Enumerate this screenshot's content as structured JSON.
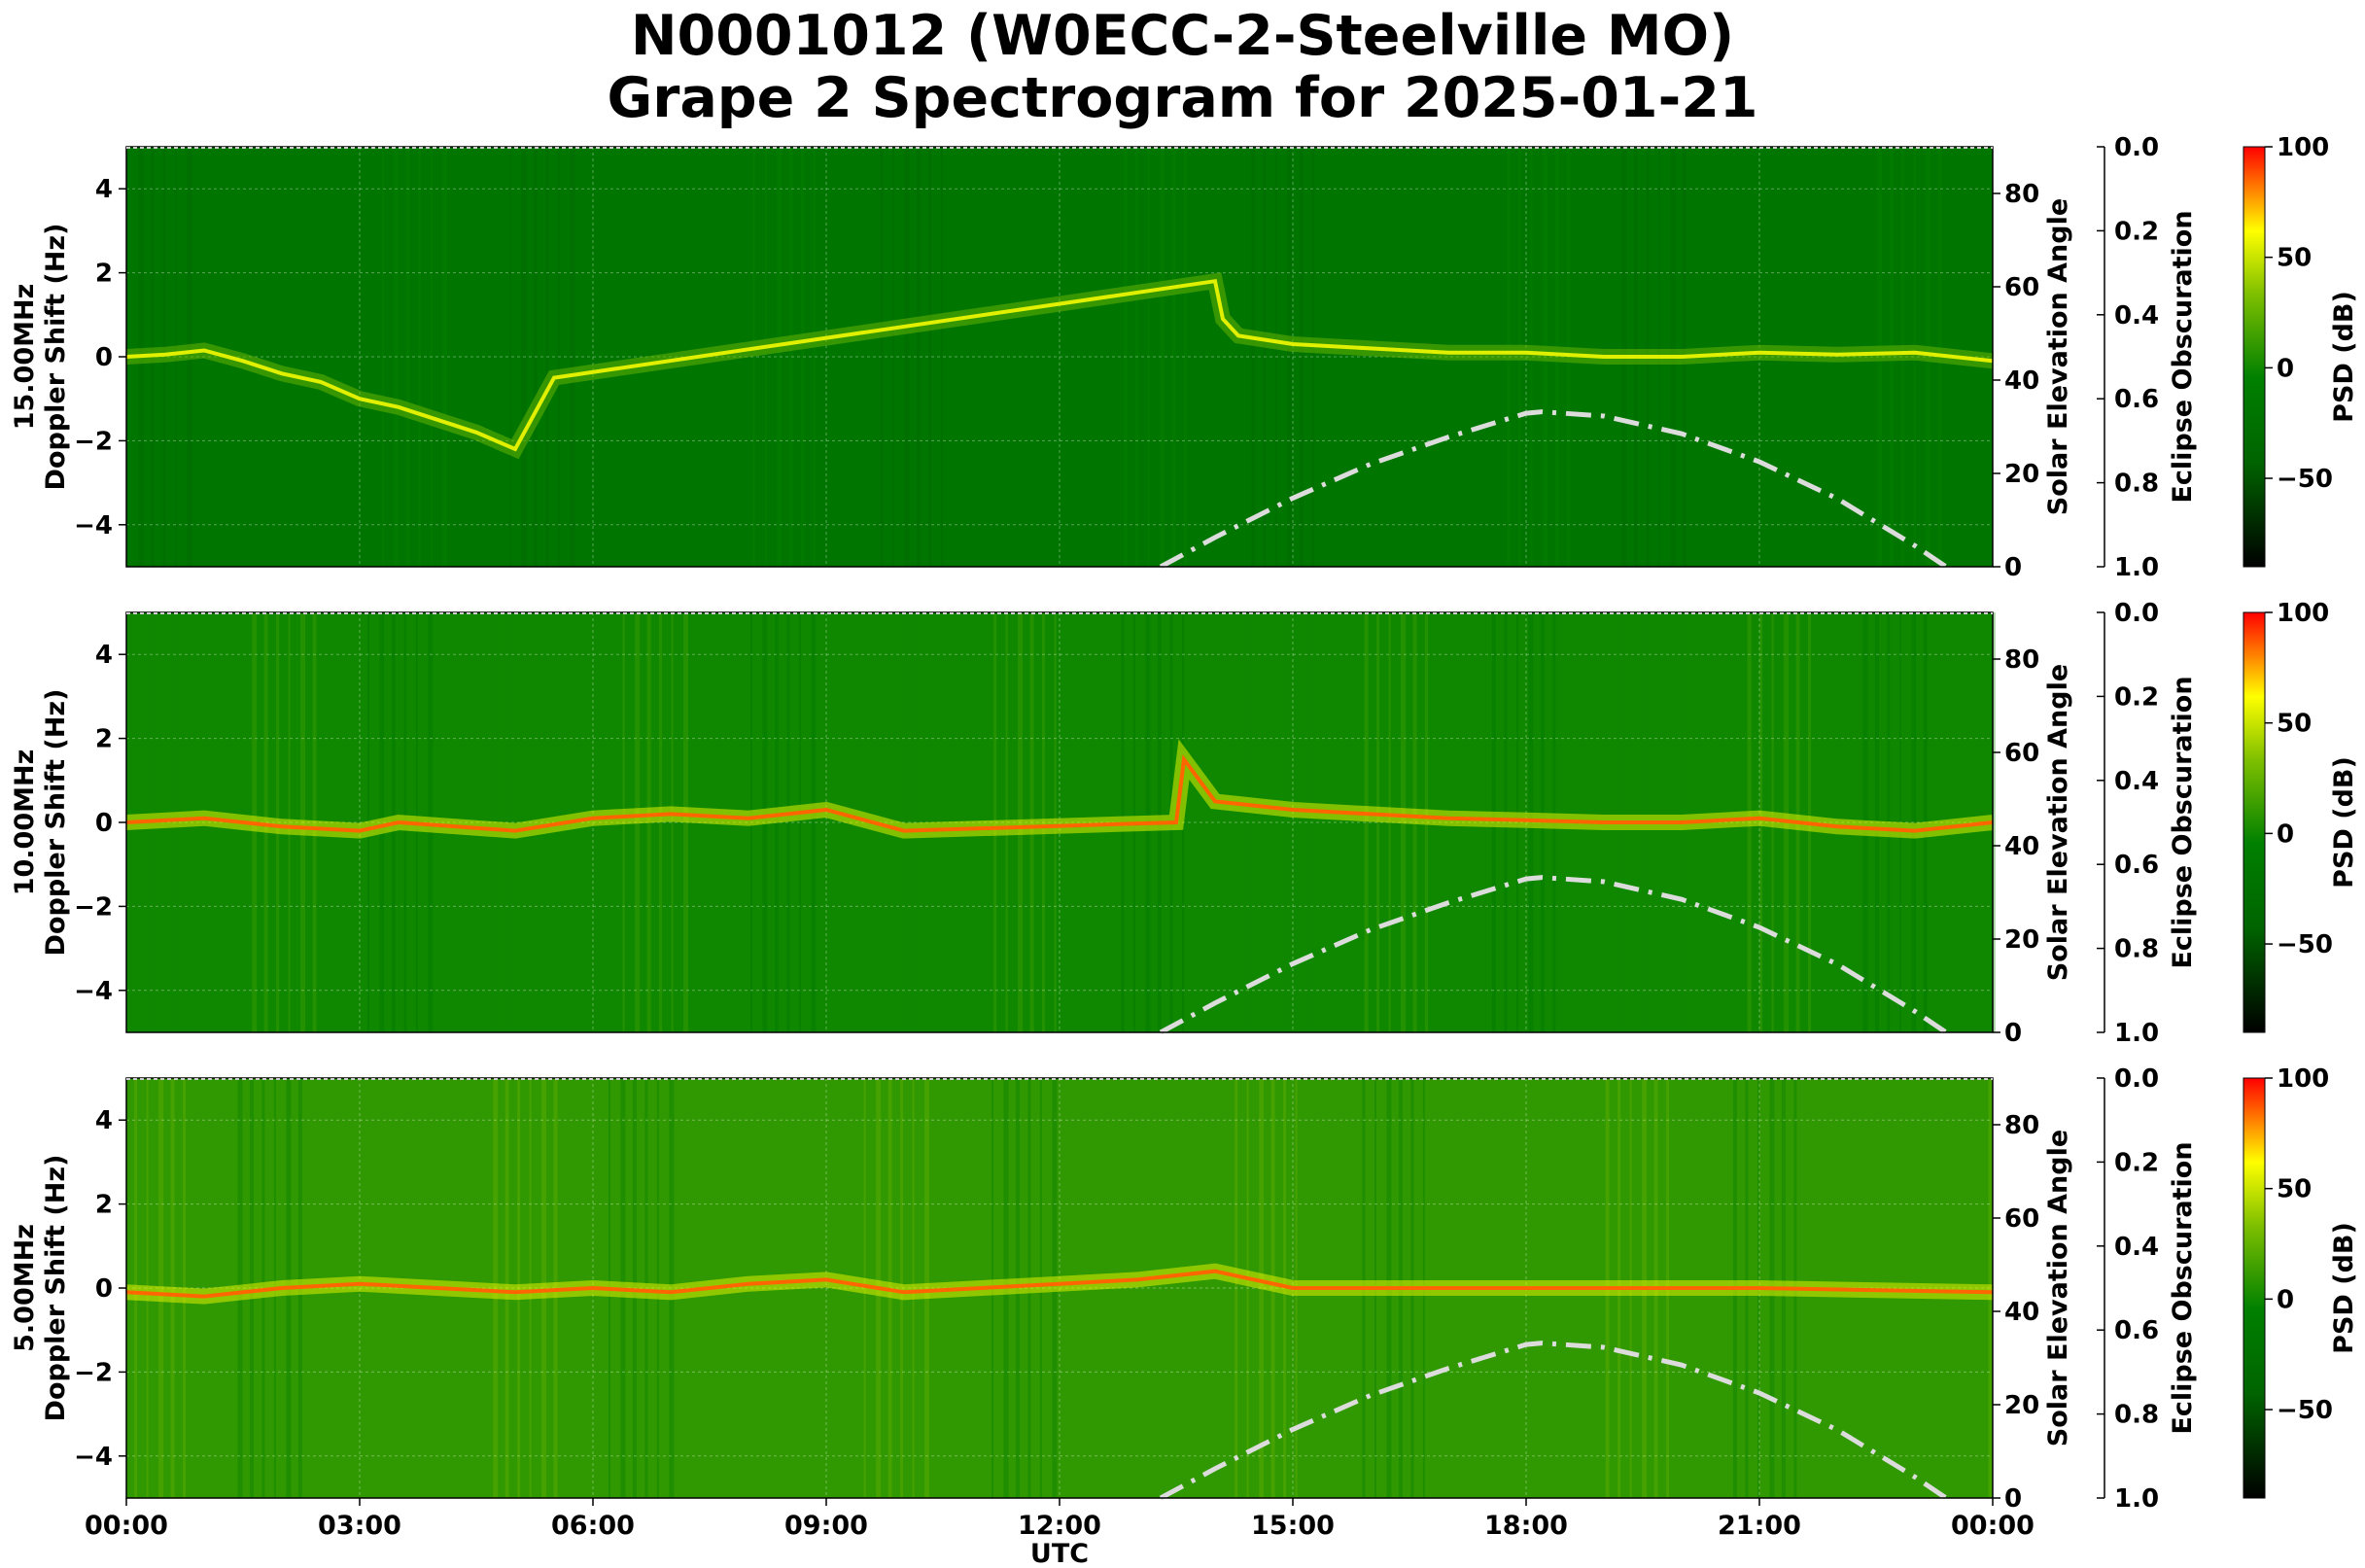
{
  "title": {
    "line1": "N0001012 (W0ECC-2-Steelville MO)",
    "line2": "Grape 2 Spectrogram for 2025-01-21"
  },
  "chart_data": {
    "type": "heatmap",
    "xlabel": "UTC",
    "x_ticks": [
      "00:00",
      "03:00",
      "06:00",
      "09:00",
      "12:00",
      "15:00",
      "18:00",
      "21:00",
      "00:00"
    ],
    "xlim_hours": [
      0,
      24
    ],
    "grid": true,
    "colormap": [
      "#000000",
      "#006400",
      "#008000",
      "#7fc000",
      "#ffff00",
      "#ff0000"
    ],
    "colorbar": {
      "label": "PSD (dB)",
      "range": [
        -90,
        100
      ],
      "ticks": [
        100,
        50,
        0,
        -50
      ],
      "tick_labels": [
        "100",
        "50",
        "0",
        "−50"
      ]
    },
    "y_ticks": [
      4,
      2,
      0,
      -2,
      -4
    ],
    "y_tick_labels": [
      "4",
      "2",
      "0",
      "−2",
      "−4"
    ],
    "ylim": [
      -5,
      5
    ],
    "solar_axis": {
      "label": "Solar Elevation Angle",
      "ylim": [
        0,
        90
      ],
      "ticks": [
        0,
        20,
        40,
        60,
        80
      ]
    },
    "eclipse_axis": {
      "label": "Eclipse Obscuration",
      "ylim": [
        1.0,
        0.0
      ],
      "ticks": [
        "0.0",
        "0.2",
        "0.4",
        "0.6",
        "0.8",
        "1.0"
      ]
    },
    "solar_elevation_curve": {
      "style": "dash-dot",
      "color": "#dcdcdc",
      "x_hours": [
        13.3,
        14,
        15,
        16,
        17,
        18,
        18.2,
        19,
        20,
        21,
        22,
        23,
        23.4
      ],
      "y_degrees": [
        0,
        6.3,
        14.7,
        22.0,
        27.8,
        32.9,
        33.2,
        32.3,
        28.5,
        22.5,
        14.6,
        4.5,
        0
      ]
    },
    "panels": [
      {
        "ylabel_line1": "15.00MHz",
        "ylabel_line2": "Doppler Shift (Hz)",
        "background_level_db": -20,
        "doppler_trace": {
          "x_hours": [
            0,
            0.5,
            1,
            1.5,
            2,
            2.5,
            3,
            3.5,
            4,
            4.5,
            5,
            5.5,
            14,
            14.1,
            14.3,
            15,
            16,
            17,
            18,
            19,
            20,
            21,
            22,
            23,
            24
          ],
          "y_hz": [
            0,
            0.05,
            0.15,
            -0.1,
            -0.4,
            -0.6,
            -1.0,
            -1.2,
            -1.5,
            -1.8,
            -2.2,
            -0.5,
            1.8,
            0.9,
            0.5,
            0.3,
            0.2,
            0.1,
            0.1,
            0.0,
            0.0,
            0.1,
            0.05,
            0.1,
            -0.1
          ]
        },
        "trace_db": 55
      },
      {
        "ylabel_line1": "10.00MHz",
        "ylabel_line2": "Doppler Shift (Hz)",
        "background_level_db": 0,
        "doppler_trace": {
          "x_hours": [
            0,
            1,
            2,
            3,
            3.5,
            5,
            6,
            7,
            8,
            9,
            10,
            13.5,
            13.6,
            14,
            15,
            16,
            17,
            18,
            19,
            20,
            21,
            22,
            23,
            24
          ],
          "y_hz": [
            0,
            0.1,
            -0.1,
            -0.2,
            0,
            -0.2,
            0.1,
            0.2,
            0.1,
            0.3,
            -0.2,
            0,
            1.5,
            0.5,
            0.3,
            0.2,
            0.1,
            0.05,
            0.0,
            0.0,
            0.1,
            -0.1,
            -0.2,
            0
          ]
        },
        "trace_db": 85
      },
      {
        "ylabel_line1": "5.00MHz",
        "ylabel_line2": "Doppler Shift (Hz)",
        "background_level_db": 10,
        "doppler_trace": {
          "x_hours": [
            0,
            1,
            2,
            3,
            4,
            5,
            6,
            7,
            8,
            9,
            10,
            11,
            12,
            13,
            14,
            15,
            18,
            21,
            24
          ],
          "y_hz": [
            -0.1,
            -0.2,
            0,
            0.1,
            0,
            -0.1,
            0,
            -0.1,
            0.1,
            0.2,
            -0.1,
            0,
            0.1,
            0.2,
            0.4,
            0,
            0,
            0,
            -0.1
          ]
        },
        "trace_db": 85
      }
    ]
  }
}
